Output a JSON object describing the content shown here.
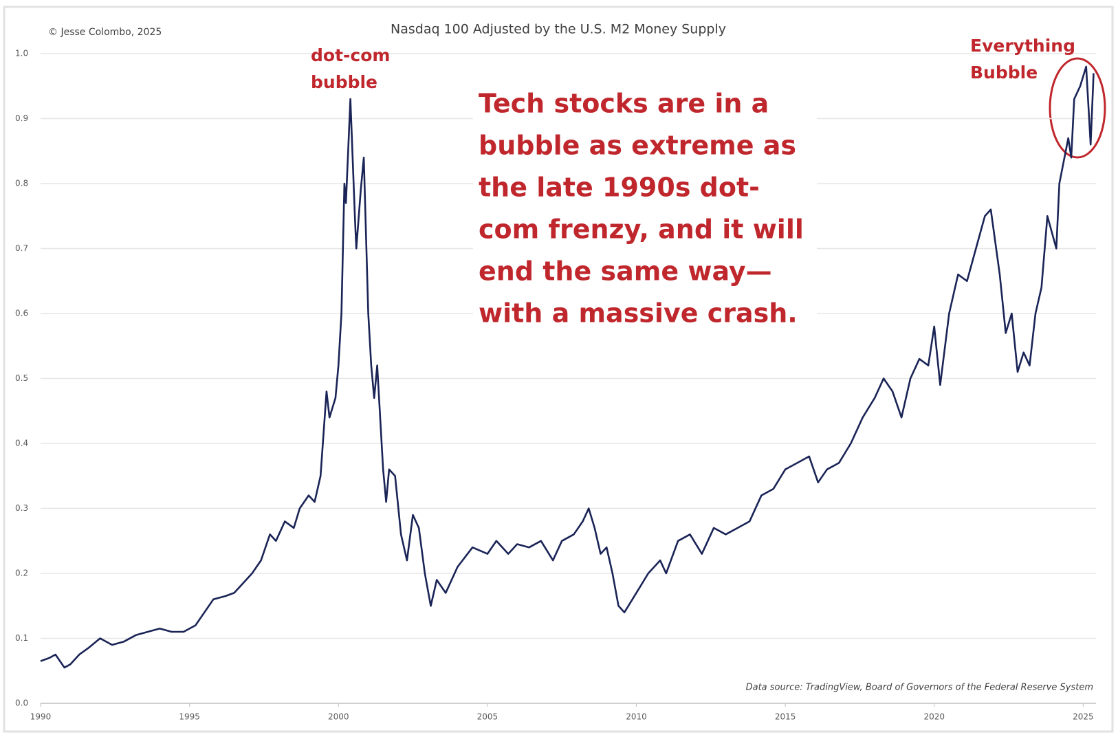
{
  "chart_data": {
    "type": "line",
    "title": "Nasdaq 100 Adjusted by the U.S. M2 Money Supply",
    "credit": "© Jesse Colombo, 2025",
    "source": "Data source: TradingView, Board of Governors of the Federal Reserve System",
    "annotations": {
      "dotcom": [
        "dot-com",
        "bubble"
      ],
      "everything": [
        "Everything",
        "Bubble"
      ],
      "main": [
        "Tech stocks are in a",
        "bubble as extreme as",
        "the late 1990s dot-",
        "com frenzy, and it will",
        "end the same way—",
        "with a massive crash."
      ],
      "color": "#c0272d"
    },
    "xlim": [
      1990,
      2025.5
    ],
    "xticks": [
      1990,
      1995,
      2000,
      2005,
      2010,
      2015,
      2020,
      2025
    ],
    "ylim": [
      0,
      1
    ],
    "yticks": [
      {
        "value": 0,
        "label": "0.0"
      },
      0.1,
      0.2,
      0.3,
      0.4,
      0.5,
      0.6,
      0.7,
      0.8,
      0.9,
      {
        "value": 1,
        "label": "1.0"
      }
    ],
    "grid": true,
    "series": [
      {
        "color": "#1a2456",
        "x": [
          1990.0,
          1990.3,
          1990.5,
          1990.8,
          1991.0,
          1991.3,
          1991.6,
          1992.0,
          1992.4,
          1992.8,
          1993.2,
          1993.6,
          1994.0,
          1994.4,
          1994.8,
          1995.2,
          1995.5,
          1995.8,
          1996.2,
          1996.5,
          1996.8,
          1997.1,
          1997.4,
          1997.7,
          1997.9,
          1998.2,
          1998.5,
          1998.7,
          1999.0,
          1999.2,
          1999.4,
          1999.6,
          1999.7,
          1999.9,
          2000.0,
          2000.1,
          2000.2,
          2000.25,
          2000.4,
          2000.55,
          2000.6,
          2000.75,
          2000.85,
          2001.0,
          2001.1,
          2001.2,
          2001.3,
          2001.5,
          2001.6,
          2001.7,
          2001.9,
          2002.1,
          2002.3,
          2002.5,
          2002.7,
          2002.9,
          2003.1,
          2003.3,
          2003.6,
          2004.0,
          2004.5,
          2005.0,
          2005.3,
          2005.7,
          2006.0,
          2006.4,
          2006.8,
          2007.2,
          2007.5,
          2007.9,
          2008.2,
          2008.4,
          2008.6,
          2008.8,
          2009.0,
          2009.2,
          2009.4,
          2009.6,
          2010.0,
          2010.4,
          2010.8,
          2011.0,
          2011.4,
          2011.8,
          2012.2,
          2012.6,
          2013.0,
          2013.4,
          2013.8,
          2014.2,
          2014.6,
          2015.0,
          2015.4,
          2015.8,
          2016.1,
          2016.4,
          2016.8,
          2017.2,
          2017.6,
          2018.0,
          2018.3,
          2018.6,
          2018.9,
          2019.2,
          2019.5,
          2019.8,
          2020.0,
          2020.2,
          2020.5,
          2020.8,
          2021.1,
          2021.4,
          2021.7,
          2021.9,
          2022.2,
          2022.4,
          2022.6,
          2022.8,
          2023.0,
          2023.2,
          2023.4,
          2023.6,
          2023.8,
          2024.1,
          2024.2,
          2024.5,
          2024.6,
          2024.7,
          2024.9,
          2025.1,
          2025.25,
          2025.35
        ],
        "values": [
          0.065,
          0.07,
          0.075,
          0.055,
          0.06,
          0.075,
          0.085,
          0.1,
          0.09,
          0.095,
          0.105,
          0.11,
          0.115,
          0.11,
          0.11,
          0.12,
          0.14,
          0.16,
          0.165,
          0.17,
          0.185,
          0.2,
          0.22,
          0.26,
          0.25,
          0.28,
          0.27,
          0.3,
          0.32,
          0.31,
          0.35,
          0.48,
          0.44,
          0.47,
          0.52,
          0.6,
          0.8,
          0.77,
          0.93,
          0.75,
          0.7,
          0.79,
          0.84,
          0.6,
          0.52,
          0.47,
          0.52,
          0.36,
          0.31,
          0.36,
          0.35,
          0.26,
          0.22,
          0.29,
          0.27,
          0.2,
          0.15,
          0.19,
          0.17,
          0.21,
          0.24,
          0.23,
          0.25,
          0.23,
          0.245,
          0.24,
          0.25,
          0.22,
          0.25,
          0.26,
          0.28,
          0.3,
          0.27,
          0.23,
          0.24,
          0.2,
          0.15,
          0.14,
          0.17,
          0.2,
          0.22,
          0.2,
          0.25,
          0.26,
          0.23,
          0.27,
          0.26,
          0.27,
          0.28,
          0.32,
          0.33,
          0.36,
          0.37,
          0.38,
          0.34,
          0.36,
          0.37,
          0.4,
          0.44,
          0.47,
          0.5,
          0.48,
          0.44,
          0.5,
          0.53,
          0.52,
          0.58,
          0.49,
          0.6,
          0.66,
          0.65,
          0.7,
          0.75,
          0.76,
          0.66,
          0.57,
          0.6,
          0.51,
          0.54,
          0.52,
          0.6,
          0.64,
          0.75,
          0.7,
          0.8,
          0.87,
          0.84,
          0.93,
          0.95,
          0.98,
          0.86,
          0.97
        ]
      }
    ]
  }
}
